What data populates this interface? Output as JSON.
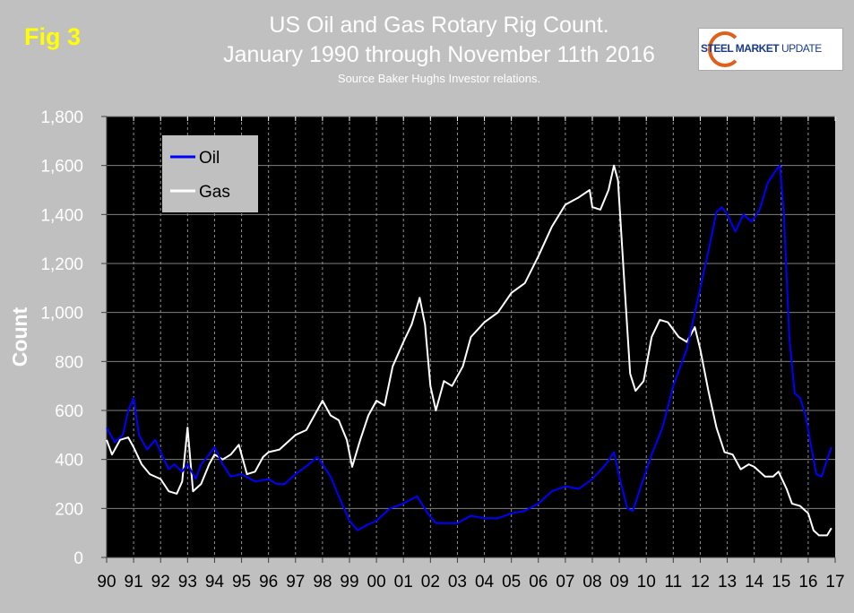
{
  "fig_label": "Fig 3",
  "logo": {
    "text_bold": "STEEL MARKET",
    "text_light": " UPDATE"
  },
  "chart_data": {
    "type": "line",
    "title_line1": "US Oil and Gas Rotary Rig Count.",
    "title_line2": "January 1990 through November 11th 2016",
    "subtitle": "Source Baker Hughs Investor relations.",
    "xlabel": "",
    "ylabel": "Count",
    "xlim": [
      1990,
      2017
    ],
    "ylim": [
      0,
      1800
    ],
    "yticks": [
      0,
      200,
      400,
      600,
      800,
      1000,
      1200,
      1400,
      1600,
      1800
    ],
    "ytick_labels": [
      "0",
      "200",
      "400",
      "600",
      "800",
      "1,000",
      "1,200",
      "1,400",
      "1,600",
      "1,800"
    ],
    "xticks": [
      1990,
      1991,
      1992,
      1993,
      1994,
      1995,
      1996,
      1997,
      1998,
      1999,
      2000,
      2001,
      2002,
      2003,
      2004,
      2005,
      2006,
      2007,
      2008,
      2009,
      2010,
      2011,
      2012,
      2013,
      2014,
      2015,
      2016,
      2017
    ],
    "xtick_labels": [
      "90",
      "91",
      "92",
      "93",
      "94",
      "95",
      "96",
      "97",
      "98",
      "99",
      "00",
      "01",
      "02",
      "03",
      "04",
      "05",
      "06",
      "07",
      "08",
      "09",
      "10",
      "11",
      "12",
      "13",
      "14",
      "15",
      "16",
      "17"
    ],
    "grid": true,
    "legend": "top-left",
    "background": "#000000",
    "series": [
      {
        "name": "Oil",
        "color": "#0000ff",
        "x": [
          1990.0,
          1990.3,
          1990.6,
          1990.8,
          1991.0,
          1991.2,
          1991.5,
          1991.8,
          1992.0,
          1992.3,
          1992.5,
          1992.8,
          1993.0,
          1993.3,
          1993.5,
          1993.8,
          1994.0,
          1994.3,
          1994.6,
          1995.0,
          1995.5,
          1996.0,
          1996.3,
          1996.6,
          1997.0,
          1997.5,
          1997.8,
          1998.0,
          1998.3,
          1998.6,
          1999.0,
          1999.3,
          1999.6,
          2000.0,
          2000.5,
          2001.0,
          2001.5,
          2001.9,
          2002.2,
          2002.6,
          2003.0,
          2003.5,
          2004.0,
          2004.5,
          2005.0,
          2005.5,
          2006.0,
          2006.5,
          2007.0,
          2007.5,
          2008.0,
          2008.5,
          2008.8,
          2009.0,
          2009.3,
          2009.5,
          2009.8,
          2010.2,
          2010.6,
          2011.0,
          2011.5,
          2011.8,
          2012.0,
          2012.3,
          2012.6,
          2012.8,
          2013.0,
          2013.3,
          2013.6,
          2013.9,
          2014.2,
          2014.5,
          2014.8,
          2014.95,
          2015.1,
          2015.3,
          2015.5,
          2015.7,
          2015.9,
          2016.1,
          2016.3,
          2016.5,
          2016.7,
          2016.86
        ],
        "y": [
          530,
          470,
          500,
          600,
          650,
          500,
          440,
          480,
          430,
          360,
          380,
          350,
          380,
          320,
          380,
          420,
          450,
          380,
          330,
          340,
          310,
          320,
          300,
          300,
          340,
          380,
          410,
          380,
          330,
          250,
          150,
          110,
          130,
          150,
          200,
          220,
          250,
          180,
          140,
          140,
          140,
          170,
          160,
          160,
          180,
          190,
          220,
          270,
          290,
          280,
          320,
          380,
          430,
          330,
          200,
          190,
          290,
          420,
          530,
          700,
          850,
          1000,
          1100,
          1250,
          1410,
          1430,
          1400,
          1330,
          1400,
          1370,
          1420,
          1530,
          1580,
          1600,
          1400,
          900,
          670,
          650,
          580,
          460,
          340,
          330,
          400,
          450
        ]
      },
      {
        "name": "Gas",
        "color": "#ffffff",
        "x": [
          1990.0,
          1990.2,
          1990.5,
          1990.8,
          1991.0,
          1991.3,
          1991.6,
          1992.0,
          1992.3,
          1992.6,
          1992.8,
          1993.0,
          1993.2,
          1993.5,
          1993.8,
          1994.0,
          1994.3,
          1994.6,
          1994.9,
          1995.2,
          1995.5,
          1995.8,
          1996.0,
          1996.4,
          1996.8,
          1997.0,
          1997.4,
          1997.8,
          1998.0,
          1998.3,
          1998.6,
          1998.9,
          1999.1,
          1999.4,
          1999.7,
          2000.0,
          2000.3,
          2000.6,
          2001.0,
          2001.3,
          2001.6,
          2001.8,
          2002.0,
          2002.2,
          2002.5,
          2002.8,
          2003.2,
          2003.5,
          2004.0,
          2004.5,
          2005.0,
          2005.5,
          2006.0,
          2006.5,
          2007.0,
          2007.5,
          2007.9,
          2008.0,
          2008.3,
          2008.6,
          2008.8,
          2008.95,
          2009.2,
          2009.4,
          2009.6,
          2009.9,
          2010.2,
          2010.5,
          2010.8,
          2011.2,
          2011.5,
          2011.8,
          2012.0,
          2012.3,
          2012.6,
          2012.9,
          2013.2,
          2013.5,
          2013.8,
          2014.0,
          2014.4,
          2014.7,
          2014.9,
          2015.2,
          2015.4,
          2015.7,
          2016.0,
          2016.2,
          2016.4,
          2016.7,
          2016.86
        ],
        "y": [
          480,
          420,
          480,
          490,
          450,
          380,
          340,
          320,
          270,
          260,
          310,
          530,
          270,
          300,
          380,
          420,
          400,
          420,
          460,
          340,
          350,
          410,
          430,
          440,
          480,
          500,
          520,
          600,
          640,
          580,
          560,
          480,
          370,
          480,
          580,
          640,
          620,
          780,
          880,
          950,
          1060,
          950,
          700,
          600,
          720,
          700,
          780,
          900,
          960,
          1000,
          1080,
          1120,
          1230,
          1350,
          1440,
          1470,
          1500,
          1430,
          1420,
          1500,
          1600,
          1540,
          1100,
          750,
          680,
          720,
          900,
          970,
          960,
          900,
          880,
          940,
          850,
          680,
          530,
          430,
          420,
          360,
          380,
          370,
          330,
          330,
          350,
          280,
          220,
          210,
          180,
          110,
          90,
          90,
          120
        ]
      }
    ]
  }
}
